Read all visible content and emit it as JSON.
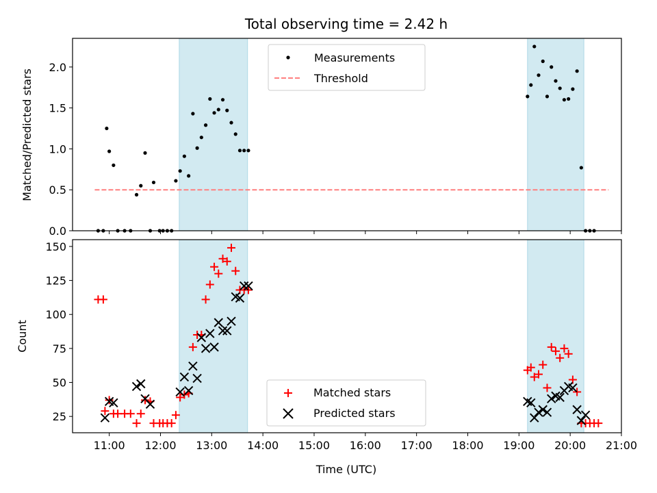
{
  "chart_data": [
    {
      "type": "scatter",
      "title": "Total observing time = 2.42 h",
      "ylabel": "Matched/Predicted stars",
      "xlabel": "",
      "xlim": [
        "10:17",
        "21:00"
      ],
      "ylim": [
        0,
        2.35
      ],
      "y_ticks": [
        0.0,
        0.5,
        1.0,
        1.5,
        2.0
      ],
      "y_tick_labels": [
        "0.0",
        "0.5",
        "1.0",
        "1.5",
        "2.0"
      ],
      "x_ticks": [
        "11:00",
        "12:00",
        "13:00",
        "14:00",
        "15:00",
        "16:00",
        "17:00",
        "18:00",
        "19:00",
        "20:00",
        "21:00"
      ],
      "shaded_intervals": [
        [
          "12:22",
          "13:42"
        ],
        [
          "19:10",
          "20:16"
        ]
      ],
      "shade_color": "#add8e6",
      "legend_position": "upper center",
      "series": [
        {
          "name": "Measurements",
          "color": "#000000",
          "marker": "dot",
          "x": [
            "10:47",
            "10:53",
            "10:57",
            "11:00",
            "11:05",
            "11:10",
            "11:18",
            "11:25",
            "11:32",
            "11:37",
            "11:42",
            "11:48",
            "11:52",
            "11:59",
            "12:03",
            "12:08",
            "12:13",
            "12:18",
            "12:23",
            "12:28",
            "12:33",
            "12:38",
            "12:43",
            "12:48",
            "12:53",
            "12:58",
            "13:03",
            "13:08",
            "13:13",
            "13:18",
            "13:23",
            "13:28",
            "13:33",
            "13:38",
            "13:43",
            "19:10",
            "19:14",
            "19:18",
            "19:23",
            "19:28",
            "19:33",
            "19:38",
            "19:43",
            "19:48",
            "19:53",
            "19:58",
            "20:03",
            "20:08",
            "20:13",
            "20:18",
            "20:23",
            "20:28"
          ],
          "y": [
            0,
            0,
            1.25,
            0.97,
            0.8,
            0,
            0,
            0,
            0.44,
            0.55,
            0.95,
            0,
            0.59,
            0,
            0,
            0,
            0,
            0.61,
            0.73,
            0.91,
            0.67,
            1.43,
            1.01,
            1.14,
            1.29,
            1.61,
            1.44,
            1.48,
            1.6,
            1.47,
            1.32,
            1.18,
            0.98,
            0.98,
            0.98,
            1.64,
            1.78,
            2.25,
            1.9,
            2.07,
            1.64,
            2.0,
            1.83,
            1.74,
            1.6,
            1.61,
            1.73,
            1.95,
            0.77,
            0,
            0,
            0
          ]
        },
        {
          "name": "Threshold",
          "color": "#ff7f7f",
          "style": "dashed",
          "x": [
            "10:43",
            "20:45"
          ],
          "y": [
            0.5,
            0.5
          ]
        }
      ]
    },
    {
      "type": "scatter",
      "xlabel": "Time (UTC)",
      "ylabel": "Count",
      "xlim": [
        "10:17",
        "21:00"
      ],
      "ylim": [
        13,
        155
      ],
      "y_ticks": [
        25,
        50,
        75,
        100,
        125,
        150
      ],
      "y_tick_labels": [
        "25",
        "50",
        "75",
        "100",
        "125",
        "150"
      ],
      "x_ticks": [
        "11:00",
        "12:00",
        "13:00",
        "14:00",
        "15:00",
        "16:00",
        "17:00",
        "18:00",
        "19:00",
        "20:00",
        "21:00"
      ],
      "x_tick_labels": [
        "11:00",
        "12:00",
        "13:00",
        "14:00",
        "15:00",
        "16:00",
        "17:00",
        "18:00",
        "19:00",
        "20:00",
        "21:00"
      ],
      "shaded_intervals": [
        [
          "12:22",
          "13:42"
        ],
        [
          "19:10",
          "20:16"
        ]
      ],
      "shade_color": "#add8e6",
      "legend_position": "lower center",
      "series": [
        {
          "name": "Matched stars",
          "color": "#ff0000",
          "marker": "plus",
          "x": [
            "10:47",
            "10:53",
            "10:55",
            "11:00",
            "11:05",
            "11:10",
            "11:18",
            "11:25",
            "11:32",
            "11:37",
            "11:42",
            "11:48",
            "11:52",
            "11:59",
            "12:03",
            "12:08",
            "12:13",
            "12:18",
            "12:23",
            "12:28",
            "12:33",
            "12:38",
            "12:43",
            "12:48",
            "12:53",
            "12:58",
            "13:03",
            "13:08",
            "13:13",
            "13:18",
            "13:23",
            "13:28",
            "13:33",
            "13:38",
            "13:43",
            "19:10",
            "19:14",
            "19:18",
            "19:23",
            "19:28",
            "19:33",
            "19:38",
            "19:43",
            "19:48",
            "19:53",
            "19:58",
            "20:03",
            "20:08",
            "20:13",
            "20:18",
            "20:23",
            "20:28",
            "20:33"
          ],
          "y": [
            111,
            111,
            29,
            37,
            27,
            27,
            27,
            27,
            20,
            27,
            37,
            36,
            20,
            20,
            20,
            20,
            20,
            26,
            39,
            41,
            42,
            76,
            85,
            85,
            111,
            122,
            135,
            130,
            141,
            139,
            149,
            132,
            118,
            118,
            118,
            59,
            61,
            54,
            56,
            63,
            46,
            76,
            73,
            68,
            75,
            71,
            52,
            43,
            20,
            20,
            20,
            20,
            20
          ]
        },
        {
          "name": "Predicted stars",
          "color": "#000000",
          "marker": "x",
          "x": [
            "10:55",
            "11:00",
            "11:05",
            "11:32",
            "11:37",
            "11:42",
            "11:48",
            "12:23",
            "12:28",
            "12:33",
            "12:38",
            "12:43",
            "12:48",
            "12:53",
            "12:58",
            "13:03",
            "13:08",
            "13:13",
            "13:18",
            "13:23",
            "13:28",
            "13:33",
            "13:38",
            "13:43",
            "19:10",
            "19:14",
            "19:18",
            "19:23",
            "19:28",
            "19:33",
            "19:38",
            "19:43",
            "19:48",
            "19:53",
            "19:58",
            "20:03",
            "20:08",
            "20:13",
            "20:18"
          ],
          "y": [
            24,
            36,
            35,
            47,
            49,
            38,
            34,
            43,
            54,
            44,
            62,
            53,
            83,
            75,
            86,
            76,
            94,
            88,
            88,
            95,
            113,
            112,
            121,
            121,
            36,
            35,
            24,
            28,
            30,
            28,
            38,
            40,
            39,
            44,
            47,
            46,
            30,
            22,
            26
          ]
        }
      ]
    }
  ]
}
